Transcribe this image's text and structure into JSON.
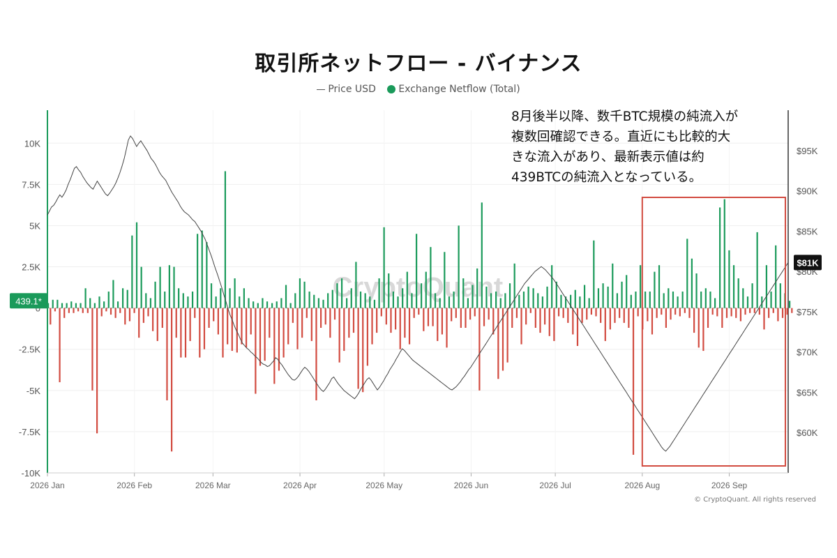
{
  "chart_data": {
    "type": "bar+line",
    "title": "取引所ネットフロー - バイナンス",
    "legend": [
      {
        "label": "Price USD",
        "marker": "line",
        "color": "#444444"
      },
      {
        "label": "Exchange Netflow (Total)",
        "marker": "dot",
        "color": "#1a9a5a"
      }
    ],
    "legend_position": "top-center",
    "x_ticks": [
      "2026 Jan",
      "2026 Feb",
      "2026 Mar",
      "2026 Apr",
      "2026 May",
      "2026 Jun",
      "2026 Jul",
      "2026 Aug",
      "2026 Sep"
    ],
    "y_left": {
      "ylim": [
        -10000,
        12000
      ],
      "ticks": [
        -10000,
        -7500,
        -5000,
        -2500,
        0,
        2500,
        5000,
        7500,
        10000
      ],
      "tick_labels": [
        "-10K",
        "-7.5K",
        "-5K",
        "-2.5K",
        "0",
        "2.5K",
        "5K",
        "7.5K",
        "10K"
      ]
    },
    "y_right": {
      "ylim": [
        55000,
        100000
      ],
      "ticks": [
        60000,
        65000,
        70000,
        75000,
        80000,
        85000,
        90000,
        95000
      ],
      "tick_labels": [
        "$60K",
        "$65K",
        "$70K",
        "$75K",
        "$80K",
        "$85K",
        "$90K",
        "$95K"
      ]
    },
    "grid": true,
    "positive_color": "#1a9a5a",
    "negative_color": "#d24a3f",
    "price_line_color": "#444444",
    "netflow_weekly_start": "2026-01-01",
    "netflow_weekly": [
      {
        "pos": [
          300,
          500,
          500,
          300,
          300,
          400,
          300,
          300
        ],
        "neg": [
          -1000,
          -200,
          -4500,
          -600,
          -300,
          -300,
          -200,
          -300
        ]
      },
      {
        "pos": [
          1200,
          600,
          300,
          700,
          400,
          1000,
          1700,
          400
        ],
        "neg": [
          -300,
          -5000,
          -7600,
          -500,
          -200,
          -400,
          -600,
          -300
        ]
      },
      {
        "pos": [
          1200,
          1100,
          4400,
          5200,
          2500,
          900,
          600,
          1600
        ],
        "neg": [
          -1000,
          -800,
          -300,
          -1800,
          -900,
          -500,
          -1400,
          -2000
        ]
      },
      {
        "pos": [
          2500,
          1000,
          2600,
          2500,
          1200,
          900,
          700,
          1000
        ],
        "neg": [
          -1200,
          -5600,
          -8700,
          -1800,
          -3000,
          -3000,
          -2000,
          -600
        ]
      },
      {
        "pos": [
          4500,
          4700,
          4000,
          1500,
          700,
          1200,
          8300,
          1200
        ],
        "neg": [
          -3000,
          -2500,
          -1200,
          -800,
          -1600,
          -3000,
          -2200,
          -2600
        ]
      },
      {
        "pos": [
          1800,
          700,
          1200,
          600,
          400,
          300,
          600,
          400
        ],
        "neg": [
          -2700,
          -2200,
          -2400,
          -1600,
          -5200,
          -3500,
          -3200,
          -1800
        ]
      },
      {
        "pos": [
          300,
          400,
          600,
          1400,
          300,
          900,
          1800,
          1600
        ],
        "neg": [
          -4600,
          -3800,
          -3000,
          -2200,
          -900,
          -2500,
          -1800,
          -600
        ]
      },
      {
        "pos": [
          1000,
          800,
          600,
          500,
          900,
          1100,
          1500,
          1800
        ],
        "neg": [
          -2000,
          -5600,
          -1200,
          -1000,
          -1800,
          -700,
          -3300,
          -2600
        ]
      },
      {
        "pos": [
          600,
          1200,
          2800,
          1000,
          900,
          700,
          500,
          1800
        ],
        "neg": [
          -1800,
          -1500,
          -4900,
          -5100,
          -3500,
          -2200,
          -1500,
          -500
        ]
      },
      {
        "pos": [
          4900,
          2100,
          1000,
          700,
          1200,
          2200,
          900,
          4500
        ],
        "neg": [
          -1000,
          -1500,
          -1300,
          -2500,
          -1800,
          -2200,
          -600,
          -400
        ]
      },
      {
        "pos": [
          1500,
          2200,
          3700,
          900,
          600,
          3400,
          700,
          1000
        ],
        "neg": [
          -1400,
          -1100,
          -1100,
          -2000,
          -1600,
          -2400,
          -800,
          -600
        ]
      },
      {
        "pos": [
          5000,
          1800,
          600,
          1400,
          2400,
          6400,
          1300,
          900
        ],
        "neg": [
          -1200,
          -1200,
          -700,
          -500,
          -5000,
          -1100,
          -700,
          -1600
        ]
      },
      {
        "pos": [
          1000,
          600,
          900,
          1500,
          2700,
          800,
          1000,
          1300
        ],
        "neg": [
          -4300,
          -3800,
          -3300,
          -1200,
          -600,
          -2200,
          -1000,
          -300
        ]
      },
      {
        "pos": [
          1200,
          900,
          700,
          1300,
          2600,
          1600,
          800,
          700
        ],
        "neg": [
          -1200,
          -1500,
          -1000,
          -1700,
          -2000,
          -500,
          -600,
          -900
        ]
      },
      {
        "pos": [
          800,
          1100,
          700,
          1400,
          600,
          4100,
          1200,
          1500
        ],
        "neg": [
          -1600,
          -2300,
          -900,
          -700,
          -400,
          -500,
          -900,
          -2000
        ]
      },
      {
        "pos": [
          1300,
          2700,
          900,
          1600,
          2000,
          800,
          1000,
          2600
        ],
        "neg": [
          -1300,
          -900,
          -600,
          -900,
          -1200,
          -8900,
          -500,
          -1300
        ]
      },
      {
        "pos": [
          1000,
          1000,
          2200,
          2600,
          900,
          1200,
          1000,
          700
        ],
        "neg": [
          -800,
          -1600,
          -600,
          -400,
          -1200,
          -700,
          -400,
          -500
        ]
      },
      {
        "pos": [
          1000,
          4200,
          3000,
          2100,
          1000,
          1200,
          1000,
          600
        ],
        "neg": [
          -300,
          -600,
          -1500,
          -2400,
          -2600,
          -1200,
          -400,
          -500
        ]
      },
      {
        "pos": [
          6100,
          6600,
          3500,
          2600,
          1800,
          1200,
          700,
          1500
        ],
        "neg": [
          -1200,
          -600,
          -500,
          -600,
          -800,
          -400,
          -300,
          -300
        ]
      },
      {
        "pos": [
          4600,
          700,
          2600,
          1000,
          3800,
          1500,
          900,
          439.1
        ],
        "neg": [
          -400,
          -1300,
          -600,
          -300,
          -800,
          -600,
          -400,
          -300
        ]
      }
    ],
    "price_daily_start": "2026-01-01",
    "price_daily": [
      87000,
      87500,
      88000,
      88200,
      88600,
      89100,
      89500,
      89200,
      89600,
      90100,
      90800,
      91400,
      92100,
      92800,
      93000,
      92600,
      92300,
      91800,
      91400,
      91000,
      90700,
      90400,
      90200,
      90700,
      91200,
      90800,
      90400,
      90000,
      89600,
      89400,
      89700,
      90100,
      90500,
      91000,
      91600,
      92300,
      93100,
      94000,
      95100,
      96300,
      96800,
      96500,
      96000,
      95500,
      95900,
      96200,
      95800,
      95400,
      95000,
      94500,
      94000,
      93700,
      93300,
      92800,
      92300,
      91900,
      91600,
      91300,
      90800,
      90300,
      89800,
      89400,
      89000,
      88600,
      88100,
      87700,
      87400,
      87200,
      87000,
      86700,
      86400,
      86200,
      85800,
      85400,
      85000,
      84500,
      84000,
      83300,
      82600,
      81900,
      81100,
      80300,
      79600,
      78800,
      78000,
      77100,
      76300,
      75400,
      74600,
      74000,
      73300,
      72700,
      72200,
      71600,
      71100,
      70800,
      70500,
      70300,
      70000,
      69800,
      69500,
      69300,
      69000,
      68700,
      68500,
      68400,
      68200,
      68300,
      68600,
      68900,
      69300,
      69100,
      68700,
      68400,
      68000,
      67600,
      67200,
      66900,
      66600,
      66500,
      66700,
      67000,
      67400,
      67800,
      68100,
      67900,
      67600,
      67200,
      66800,
      66400,
      66000,
      65600,
      65300,
      65100,
      65400,
      65800,
      66200,
      66700,
      66900,
      66500,
      66100,
      65800,
      65500,
      65200,
      65000,
      64800,
      64600,
      64400,
      64200,
      64500,
      64900,
      65400,
      65800,
      66200,
      66600,
      66800,
      66500,
      66100,
      65700,
      65300,
      65600,
      66000,
      66400,
      66900,
      67300,
      67800,
      68200,
      68600,
      69100,
      69500,
      70000,
      70400,
      70200,
      69900,
      69600,
      69300,
      69000,
      68800,
      68600,
      68400,
      68200,
      68000,
      67800,
      67600,
      67400,
      67200,
      67000,
      66800,
      66600,
      66400,
      66200,
      66000,
      65800,
      65600,
      65400,
      65300,
      65500,
      65700,
      66000,
      66300,
      66700,
      67000,
      67400,
      67800,
      68100,
      68500,
      68900,
      69300,
      69700,
      70100,
      70500,
      70900,
      71300,
      71700,
      72100,
      72500,
      72900,
      73300,
      73700,
      74100,
      74500,
      74900,
      75300,
      75700,
      76100,
      76500,
      76900,
      77300,
      77700,
      78100,
      78500,
      78800,
      79100,
      79400,
      79700,
      80000,
      80200,
      80400,
      80600,
      80400,
      80200,
      79900,
      79600,
      79300,
      79000,
      78600,
      78200,
      77800,
      77400,
      77000,
      76600,
      76200,
      75800,
      75400,
      75000,
      74600,
      74200,
      73800,
      73400,
      73000,
      72600,
      72200,
      71800,
      71400,
      71000,
      70600,
      70200,
      69800,
      69400,
      69000,
      68600,
      68200,
      67800,
      67400,
      67000,
      66600,
      66200,
      65800,
      65400,
      65000,
      64600,
      64200,
      63800,
      63400,
      63000,
      62600,
      62200,
      61800,
      61400,
      61000,
      60600,
      60200,
      59800,
      59400,
      59000,
      58600,
      58200,
      57900,
      57700,
      58000,
      58300,
      58700,
      59100,
      59500,
      59900,
      60300,
      60700,
      61100,
      61500,
      61900,
      62300,
      62700,
      63100,
      63500,
      63900,
      64300,
      64700,
      65100,
      65500,
      65900,
      66300,
      66700,
      67100,
      67500,
      67900,
      68300,
      68700,
      69100,
      69500,
      69900,
      70300,
      70700,
      71100,
      71500,
      71900,
      72300,
      72700,
      73100,
      73500,
      73900,
      74300,
      74700,
      75100,
      75500,
      75900,
      76300,
      76700,
      77100,
      77500,
      77900,
      78300,
      78700,
      79100,
      79500,
      79900,
      80300,
      80700,
      81100
    ]
  },
  "price_current_label": "$81K",
  "netflow_current_label": "439.1*",
  "annotation_lines": [
    "8月後半以降、数千BTC規模の純流入が",
    "複数回確認できる。直近にも比較的大",
    "きな流入があり、最新表示値は約",
    "439BTCの純流入となっている。"
  ],
  "highlight_box": {
    "start": "2026-08-01",
    "end": "2026-09-21",
    "color": "#d24a3f"
  },
  "watermark": "CryptoQuant",
  "copyright": "© CryptoQuant. All rights reserved"
}
